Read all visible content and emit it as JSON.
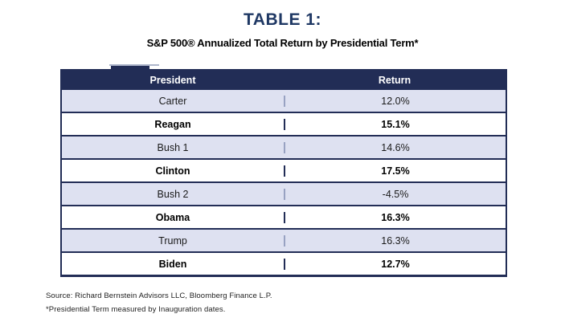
{
  "chart_data": {
    "type": "table",
    "title": "TABLE 1:",
    "subtitle": "S&P 500® Annualized Total Return by Presidential Term*",
    "columns": [
      "President",
      "Return"
    ],
    "rows": [
      {
        "president": "Carter",
        "return_label": "12.0%",
        "return_pct": 12.0
      },
      {
        "president": "Reagan",
        "return_label": "15.1%",
        "return_pct": 15.1
      },
      {
        "president": "Bush 1",
        "return_label": "14.6%",
        "return_pct": 14.6
      },
      {
        "president": "Clinton",
        "return_label": "17.5%",
        "return_pct": 17.5
      },
      {
        "president": "Bush 2",
        "return_label": "-4.5%",
        "return_pct": -4.5
      },
      {
        "president": "Obama",
        "return_label": "16.3%",
        "return_pct": 16.3
      },
      {
        "president": "Trump",
        "return_label": "16.3%",
        "return_pct": 16.3
      },
      {
        "president": "Biden",
        "return_label": "12.7%",
        "return_pct": 12.7
      }
    ],
    "source": "Source: Richard Bernstein Advisors LLC, Bloomberg Finance L.P.",
    "footnote": "*Presidential Term measured by Inauguration dates.",
    "layout_hints": {
      "header_bg": "#222D56",
      "title_color": "#1F3864",
      "alt_row_bg": "#DEE1F1",
      "border_color": "#222D56",
      "grid": "on"
    }
  }
}
